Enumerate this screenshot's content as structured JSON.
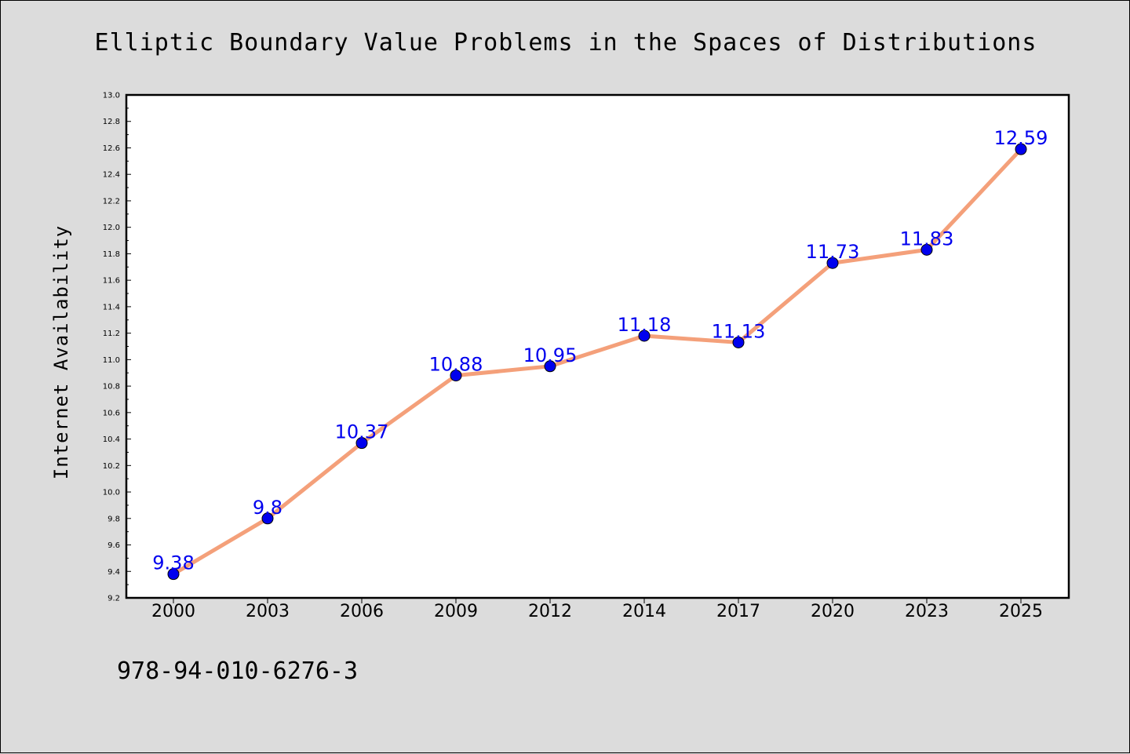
{
  "chart_data": {
    "type": "line",
    "title": "Elliptic Boundary Value Problems in the Spaces of Distributions",
    "xlabel": "",
    "ylabel": "Internet Availability",
    "categories": [
      "2000",
      "2003",
      "2006",
      "2009",
      "2012",
      "2014",
      "2017",
      "2020",
      "2023",
      "2025"
    ],
    "series": [
      {
        "values": [
          9.38,
          9.8,
          10.37,
          10.88,
          10.95,
          11.18,
          11.13,
          11.73,
          11.83,
          12.59
        ],
        "data_labels": [
          "9.38",
          "9.8",
          "10.37",
          "10.88",
          "10.95",
          "11.18",
          "11.13",
          "11.73",
          "11.83",
          "12.59"
        ],
        "line_color": "#f4a07a",
        "marker_color": "#0000ee"
      }
    ],
    "ylim": [
      9.2,
      13.0
    ],
    "yticks": [
      "9.2",
      "9.4",
      "9.6",
      "9.8",
      "10.0",
      "10.2",
      "10.4",
      "10.6",
      "10.8",
      "11.0",
      "11.2",
      "11.4",
      "11.6",
      "11.8",
      "12.0",
      "12.2",
      "12.4",
      "12.6",
      "12.8",
      "13.0"
    ],
    "grid": false,
    "legend": "none",
    "footer": "978-94-010-6276-3"
  }
}
